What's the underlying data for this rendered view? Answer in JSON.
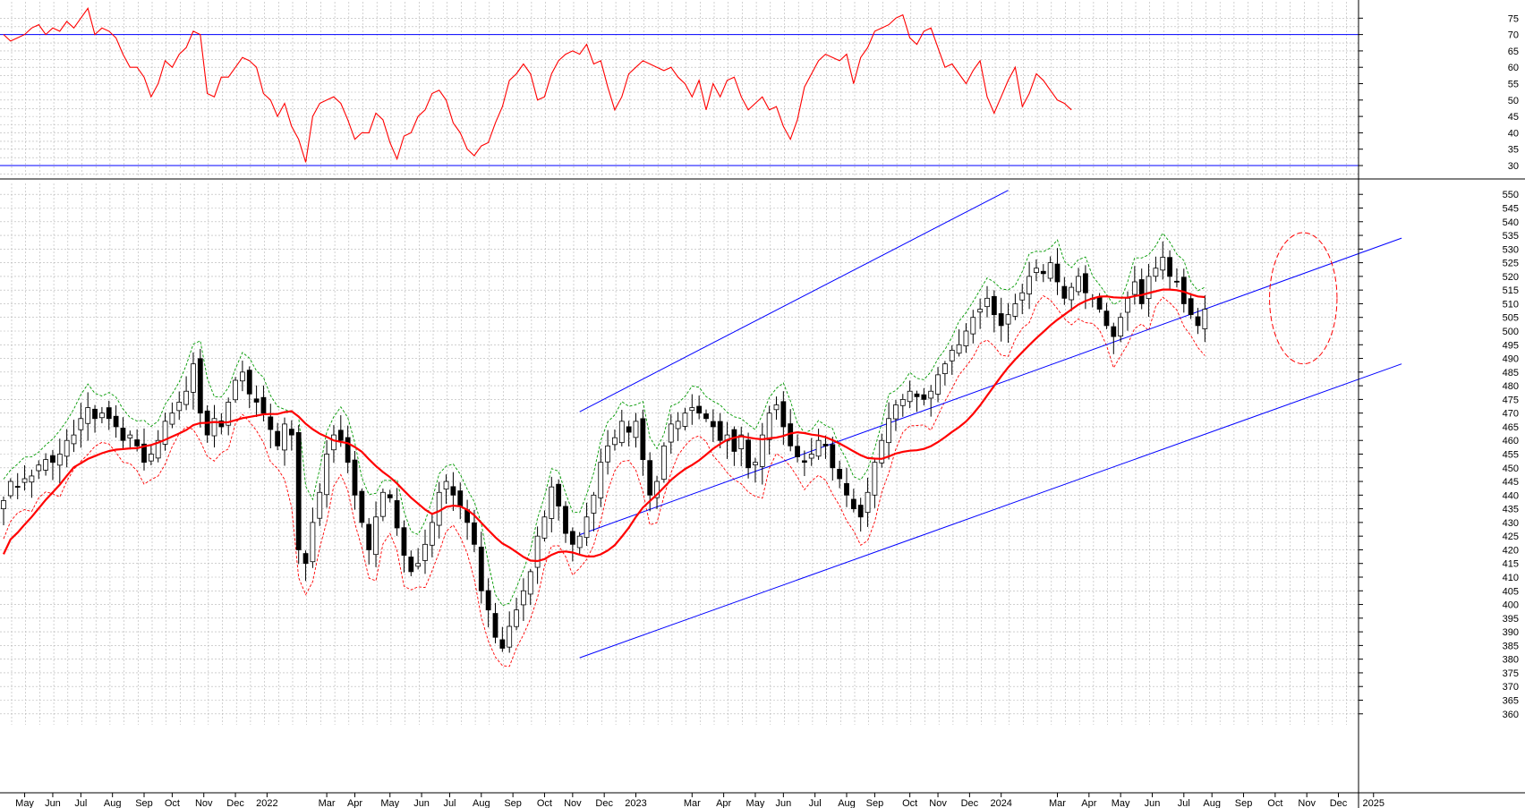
{
  "chart_data": [
    {
      "panel": "oscillator",
      "type": "line",
      "ylim": [
        27,
        80
      ],
      "y_ticks": [
        30,
        35,
        40,
        45,
        50,
        55,
        60,
        65,
        70,
        75
      ],
      "y_tick_labels": [
        "30",
        "35",
        "40",
        "45",
        "50",
        "55",
        "60",
        "65",
        "70",
        "75"
      ],
      "reference_lines": [
        70,
        30
      ],
      "reference_color": "#0000ff",
      "line_color": "#ff0000",
      "grid": true,
      "series": [
        {
          "values": [
            70,
            68,
            69,
            70,
            72,
            73,
            70,
            72,
            71,
            74,
            72,
            75,
            78,
            70,
            72,
            71,
            69,
            64,
            60,
            60,
            57,
            51,
            55,
            62,
            60,
            64,
            66,
            71,
            70,
            52,
            51,
            57,
            57,
            60,
            63,
            62,
            60,
            52,
            50,
            45,
            49,
            42,
            38,
            31,
            45,
            49,
            50,
            51,
            49,
            44,
            38,
            40,
            40,
            46,
            44,
            37,
            32,
            39,
            40,
            45,
            47,
            52,
            53,
            50,
            43,
            40,
            35,
            33,
            36,
            37,
            43,
            48,
            56,
            58,
            61,
            58,
            50,
            51,
            58,
            62,
            64,
            65,
            64,
            67,
            61,
            62,
            54,
            47,
            51,
            58,
            60,
            62,
            61,
            60,
            59,
            60,
            57,
            55,
            51,
            56,
            47,
            55,
            51,
            56,
            57,
            51,
            47,
            49,
            51,
            47,
            48,
            42,
            38,
            44,
            54,
            58,
            62,
            64,
            63,
            62,
            64,
            55,
            63,
            66,
            71,
            72,
            73,
            75,
            76,
            69,
            67,
            71,
            72,
            66,
            60,
            61,
            58,
            55,
            59,
            62,
            51,
            46,
            51,
            56,
            60,
            48,
            52,
            58,
            56,
            53,
            50,
            49,
            47
          ]
        }
      ]
    },
    {
      "panel": "price",
      "type": "candlestick",
      "ylim": [
        356,
        554
      ],
      "y_ticks": [
        360,
        365,
        370,
        375,
        380,
        385,
        390,
        395,
        400,
        405,
        410,
        415,
        420,
        425,
        430,
        435,
        440,
        445,
        450,
        455,
        460,
        465,
        470,
        475,
        480,
        485,
        490,
        495,
        500,
        505,
        510,
        515,
        520,
        525,
        530,
        535,
        540,
        545,
        550
      ],
      "y_tick_labels": [
        "360",
        "365",
        "370",
        "375",
        "380",
        "385",
        "390",
        "395",
        "400",
        "405",
        "410",
        "415",
        "420",
        "425",
        "430",
        "435",
        "440",
        "445",
        "450",
        "455",
        "460",
        "465",
        "470",
        "475",
        "480",
        "485",
        "490",
        "495",
        "500",
        "505",
        "510",
        "515",
        "520",
        "525",
        "530",
        "535",
        "540",
        "545",
        "550"
      ],
      "close": [
        438,
        445,
        443,
        446,
        447,
        451,
        453,
        452,
        455,
        460,
        462,
        468,
        472,
        468,
        470,
        468,
        465,
        460,
        462,
        458,
        452,
        455,
        460,
        467,
        470,
        474,
        478,
        488,
        470,
        462,
        468,
        465,
        474,
        482,
        485,
        477,
        474,
        470,
        464,
        458,
        466,
        462,
        420,
        415,
        430,
        441,
        455,
        462,
        460,
        452,
        440,
        430,
        420,
        432,
        441,
        439,
        428,
        418,
        412,
        415,
        422,
        430,
        441,
        445,
        440,
        436,
        430,
        422,
        405,
        398,
        388,
        384,
        392,
        398,
        405,
        412,
        425,
        432,
        443,
        436,
        426,
        422,
        425,
        432,
        440,
        452,
        458,
        461,
        467,
        463,
        467,
        453,
        440,
        445,
        458,
        466,
        467,
        470,
        472,
        470,
        468,
        465,
        460,
        462,
        456,
        462,
        450,
        452,
        462,
        470,
        473,
        465,
        458,
        454,
        452,
        455,
        460,
        458,
        450,
        446,
        440,
        435,
        432,
        441,
        452,
        460,
        468,
        473,
        475,
        478,
        476,
        475,
        478,
        484,
        488,
        493,
        495,
        500,
        505,
        508,
        512,
        506,
        502,
        506,
        510,
        514,
        520,
        523,
        521,
        525,
        518,
        512,
        516,
        520,
        514,
        512,
        508,
        502,
        498,
        505,
        512,
        518,
        510,
        520,
        523,
        527,
        520,
        518,
        510,
        506,
        502,
        508
      ],
      "ma_line": {
        "color": "#ff0000"
      },
      "envelope_upper_color": "#009900",
      "envelope_lower_color": "#ff0000",
      "trend_lines": [
        {
          "from": [
            82,
            470.5
          ],
          "to": [
            143,
            551.5
          ]
        },
        {
          "from": [
            82,
            425.5
          ],
          "to": [
            199,
            534
          ]
        },
        {
          "from": [
            82,
            380.5
          ],
          "to": [
            199,
            488
          ]
        }
      ],
      "highlight": {
        "center": [
          185,
          512
        ],
        "rx": 4.8,
        "ry": 24,
        "color": "#ff0000"
      },
      "grid": true
    }
  ],
  "x_axis": {
    "labels": [
      {
        "label": "May",
        "i": 3
      },
      {
        "label": "Jun",
        "i": 7
      },
      {
        "label": "Jul",
        "i": 11
      },
      {
        "label": "Aug",
        "i": 15.5
      },
      {
        "label": "Sep",
        "i": 20
      },
      {
        "label": "Oct",
        "i": 24
      },
      {
        "label": "Nov",
        "i": 28.5
      },
      {
        "label": "Dec",
        "i": 33
      },
      {
        "label": "2022",
        "i": 37.5
      },
      {
        "label": "Mar",
        "i": 46
      },
      {
        "label": "Apr",
        "i": 50
      },
      {
        "label": "May",
        "i": 55
      },
      {
        "label": "Jun",
        "i": 59.5
      },
      {
        "label": "Jul",
        "i": 63.5
      },
      {
        "label": "Aug",
        "i": 68
      },
      {
        "label": "Sep",
        "i": 72.5
      },
      {
        "label": "Oct",
        "i": 77
      },
      {
        "label": "Nov",
        "i": 81
      },
      {
        "label": "Dec",
        "i": 85.5
      },
      {
        "label": "2023",
        "i": 90
      },
      {
        "label": "Mar",
        "i": 98
      },
      {
        "label": "Apr",
        "i": 102.5
      },
      {
        "label": "May",
        "i": 107
      },
      {
        "label": "Jun",
        "i": 111
      },
      {
        "label": "Jul",
        "i": 115.5
      },
      {
        "label": "Aug",
        "i": 120
      },
      {
        "label": "Sep",
        "i": 124
      },
      {
        "label": "Oct",
        "i": 129
      },
      {
        "label": "Nov",
        "i": 133
      },
      {
        "label": "Dec",
        "i": 137.5
      },
      {
        "label": "2024",
        "i": 142
      },
      {
        "label": "Mar",
        "i": 150
      },
      {
        "label": "Apr",
        "i": 154.5
      },
      {
        "label": "May",
        "i": 159
      },
      {
        "label": "Jun",
        "i": 163.5
      },
      {
        "label": "Jul",
        "i": 168
      },
      {
        "label": "Aug",
        "i": 172
      },
      {
        "label": "Sep",
        "i": 176.5
      },
      {
        "label": "Oct",
        "i": 181
      },
      {
        "label": "Nov",
        "i": 185.5
      },
      {
        "label": "Dec",
        "i": 190
      },
      {
        "label": "2025",
        "i": 195
      }
    ]
  }
}
